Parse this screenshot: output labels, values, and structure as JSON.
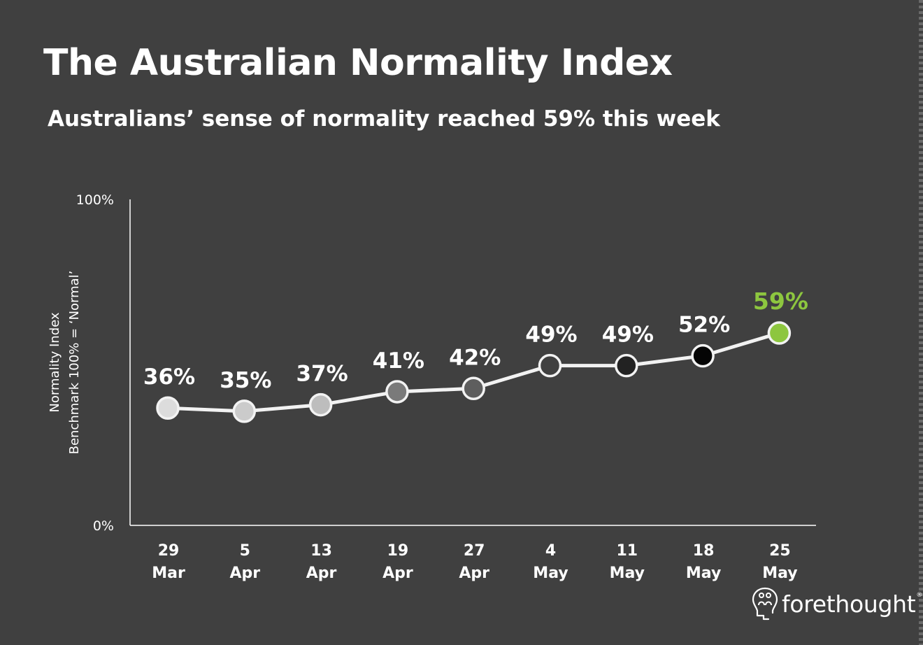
{
  "title": "The Australian Normality Index",
  "subtitle": "Australians’ sense of normality reached 59% this week",
  "brand": {
    "name": "forethought",
    "registered": "®",
    "icon": "lightbulb-people-icon"
  },
  "colors": {
    "background": "#404040",
    "line": "#f2f2f2",
    "highlight": "#8dc63f",
    "axis": "#ffffff"
  },
  "chart_data": {
    "type": "line",
    "ylabel": [
      "Normality Index",
      "Benchmark 100% = ‘Normal’"
    ],
    "yticks": [
      "100%",
      "0%"
    ],
    "ylim": [
      0,
      100
    ],
    "grid": false,
    "series": [
      {
        "points": [
          {
            "label": [
              "29",
              "Mar"
            ],
            "value": 36,
            "text": "36%",
            "fill": "#dcdcdc"
          },
          {
            "label": [
              "5",
              "Apr"
            ],
            "value": 35,
            "text": "35%",
            "fill": "#cbcbcb"
          },
          {
            "label": [
              "13",
              "Apr"
            ],
            "value": 37,
            "text": "37%",
            "fill": "#bdbdbd"
          },
          {
            "label": [
              "19",
              "Apr"
            ],
            "value": 41,
            "text": "41%",
            "fill": "#7a7a7a"
          },
          {
            "label": [
              "27",
              "Apr"
            ],
            "value": 42,
            "text": "42%",
            "fill": "#5e5e5e"
          },
          {
            "label": [
              "4",
              "May"
            ],
            "value": 49,
            "text": "49%",
            "fill": "#404040"
          },
          {
            "label": [
              "11",
              "May"
            ],
            "value": 49,
            "text": "49%",
            "fill": "#222222"
          },
          {
            "label": [
              "18",
              "May"
            ],
            "value": 52,
            "text": "52%",
            "fill": "#050505"
          },
          {
            "label": [
              "25",
              "May"
            ],
            "value": 59,
            "text": "59%",
            "fill": "#8dc63f",
            "highlight": true
          }
        ]
      }
    ]
  }
}
